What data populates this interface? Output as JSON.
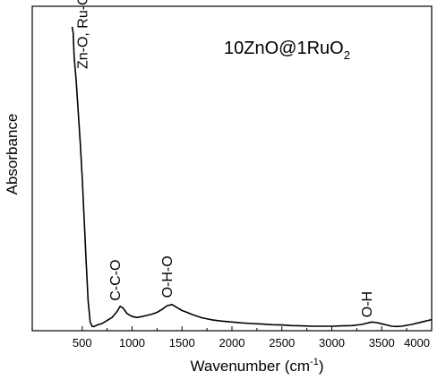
{
  "chart_data": {
    "type": "line",
    "title": "10ZnO@1RuO",
    "title_subscript": "2",
    "xlabel": "Wavenumber (cm",
    "xlabel_superscript": "-1",
    "xlabel_suffix": ")",
    "ylabel": "Absorbance",
    "xlim": [
      0,
      4000
    ],
    "ylim": [
      0,
      1
    ],
    "y_ticks_labeled": false,
    "grid": false,
    "x_ticks": [
      500,
      1000,
      1500,
      2000,
      2500,
      3000,
      3500,
      4000
    ],
    "x_tick_labels": [
      "500",
      "1000",
      "1500",
      "2000",
      "2500",
      "3000",
      "3500",
      "4000"
    ],
    "series": [
      {
        "x": [
          400,
          410,
          420,
          440,
          460,
          480,
          500,
          520,
          540,
          560,
          580,
          600,
          620,
          650,
          700,
          750,
          800,
          850,
          880,
          910,
          950,
          1000,
          1050,
          1100,
          1150,
          1200,
          1250,
          1300,
          1350,
          1400,
          1450,
          1500,
          1550,
          1600,
          1700,
          1800,
          1900,
          2000,
          2100,
          2200,
          2300,
          2400,
          2500,
          2600,
          2700,
          2800,
          2900,
          3000,
          3100,
          3200,
          3300,
          3350,
          3400,
          3450,
          3500,
          3550,
          3600,
          3650,
          3700,
          3800,
          3900,
          4000
        ],
        "y": [
          1.0,
          0.98,
          0.9,
          0.82,
          0.72,
          0.62,
          0.5,
          0.36,
          0.22,
          0.09,
          0.02,
          0.005,
          0.005,
          0.01,
          0.015,
          0.025,
          0.035,
          0.055,
          0.072,
          0.066,
          0.048,
          0.038,
          0.035,
          0.038,
          0.042,
          0.046,
          0.052,
          0.062,
          0.074,
          0.078,
          0.068,
          0.058,
          0.052,
          0.045,
          0.034,
          0.027,
          0.023,
          0.02,
          0.017,
          0.015,
          0.013,
          0.011,
          0.01,
          0.008,
          0.007,
          0.006,
          0.006,
          0.006,
          0.007,
          0.008,
          0.012,
          0.016,
          0.02,
          0.018,
          0.014,
          0.01,
          0.006,
          0.005,
          0.006,
          0.012,
          0.02,
          0.028
        ]
      }
    ],
    "annotations": [
      {
        "text": "Zn-O, Ru-O",
        "x": 550,
        "y": 0.86,
        "rotated": true
      },
      {
        "text": "C-C-O",
        "x": 880,
        "y": 0.09,
        "rotated": true
      },
      {
        "text": "O-H-O",
        "x": 1400,
        "y": 0.1,
        "rotated": true
      },
      {
        "text": "O-H",
        "x": 3400,
        "y": 0.035,
        "rotated": true
      }
    ]
  }
}
